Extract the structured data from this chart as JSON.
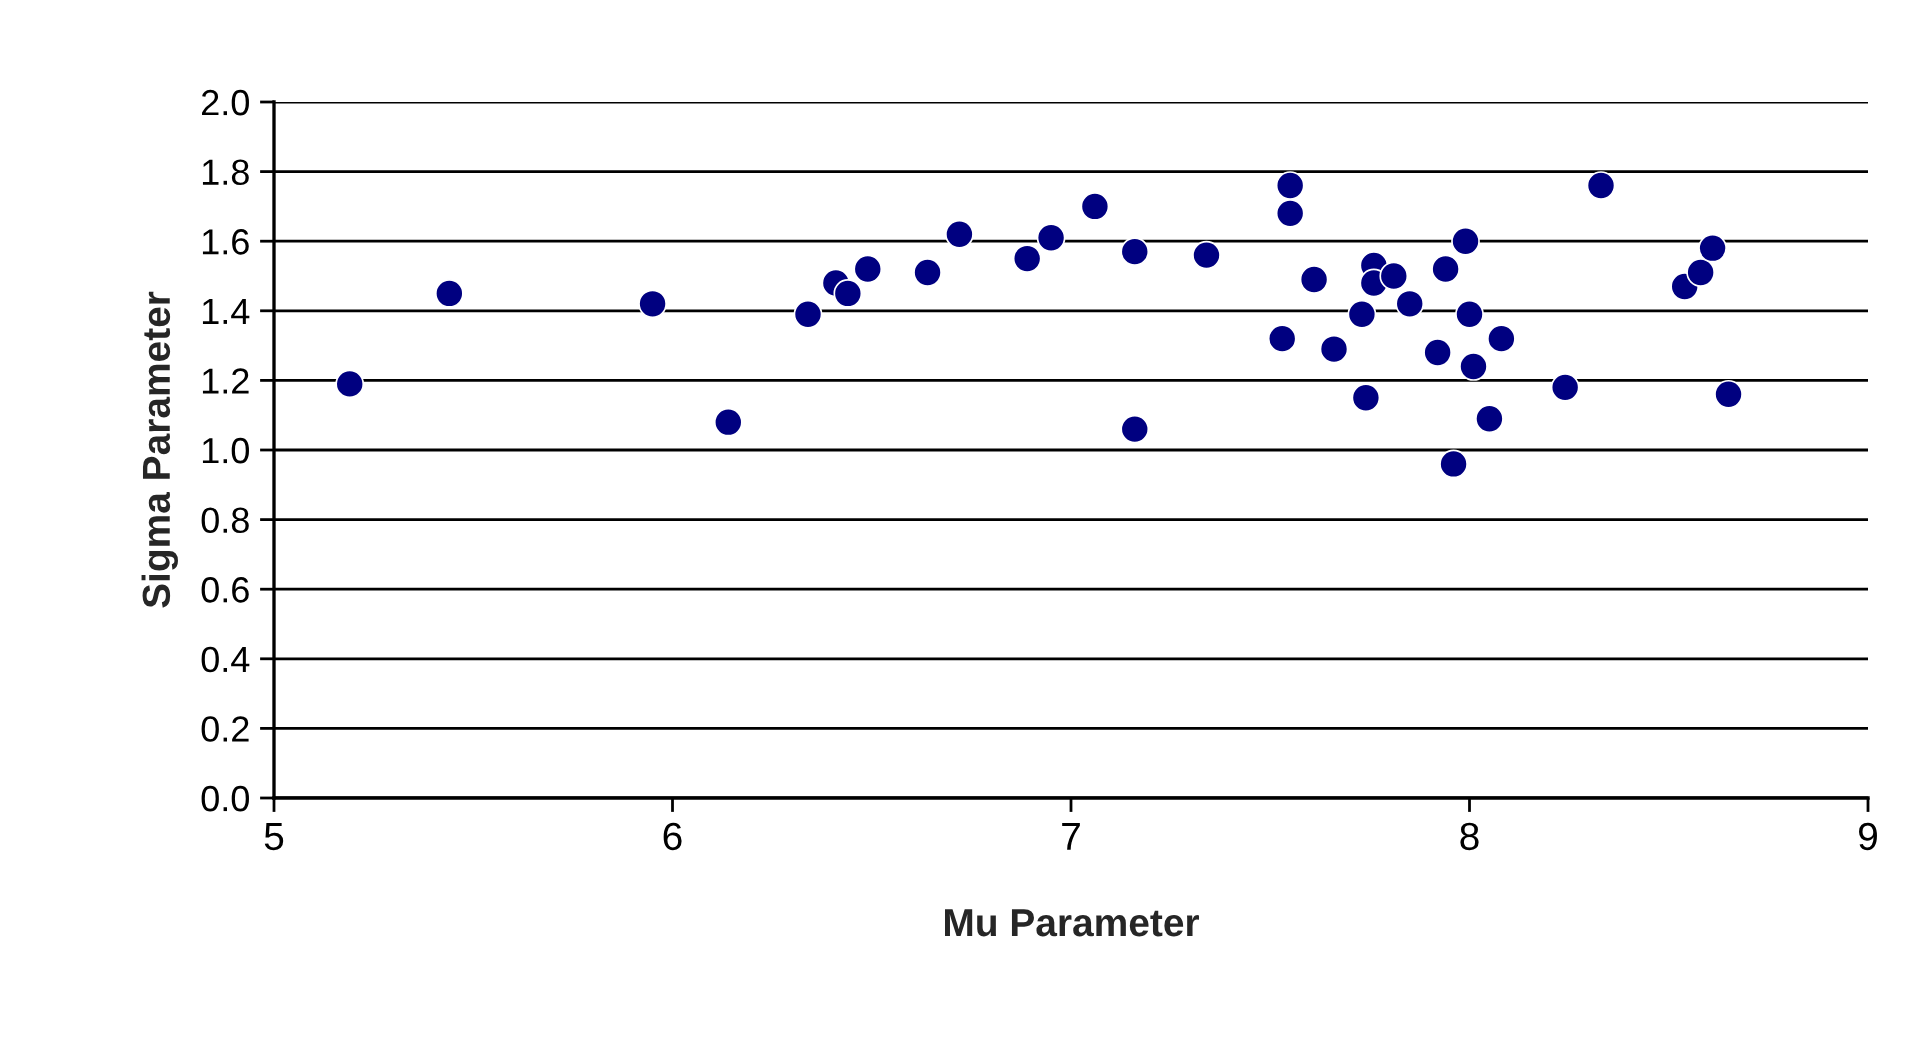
{
  "chart_data": {
    "type": "scatter",
    "xlabel": "Mu Parameter",
    "ylabel": "Sigma Parameter",
    "xlim": [
      5,
      9
    ],
    "xticks": [
      5,
      6,
      7,
      8,
      9
    ],
    "ylim": [
      0,
      2.0
    ],
    "yticks": [
      {
        "value": 0,
        "label": "0.0"
      },
      {
        "value": 0.2,
        "label": "0.2"
      },
      {
        "value": 0.4,
        "label": "0.4"
      },
      {
        "value": 0.6,
        "label": "0.6"
      },
      {
        "value": 0.8,
        "label": "0.8"
      },
      {
        "value": 1.0,
        "label": "1.0"
      },
      {
        "value": 1.2,
        "label": "1.2"
      },
      {
        "value": 1.4,
        "label": "1.4"
      },
      {
        "value": 1.6,
        "label": "1.6"
      },
      {
        "value": 1.8,
        "label": "1.8"
      },
      {
        "value": 2.0,
        "label": "2.0"
      }
    ],
    "grid": "y",
    "marker": "circle",
    "legend": false,
    "series": [
      {
        "color": "#000080",
        "x": [
          5.19,
          5.44,
          5.95,
          6.14,
          6.34,
          6.41,
          6.44,
          6.49,
          6.64,
          6.72,
          6.89,
          6.95,
          7.06,
          7.16,
          7.16,
          7.34,
          7.53,
          7.55,
          7.55,
          7.61,
          7.66,
          7.73,
          7.74,
          7.76,
          7.76,
          7.81,
          7.85,
          7.92,
          7.94,
          7.96,
          7.99,
          8.0,
          8.01,
          8.05,
          8.08,
          8.24,
          8.33,
          8.54,
          8.58,
          8.61,
          8.65
        ],
        "values": [
          1.19,
          1.45,
          1.42,
          1.08,
          1.39,
          1.48,
          1.45,
          1.52,
          1.51,
          1.62,
          1.55,
          1.61,
          1.7,
          1.57,
          1.06,
          1.56,
          1.32,
          1.76,
          1.68,
          1.49,
          1.29,
          1.39,
          1.15,
          1.53,
          1.48,
          1.5,
          1.42,
          1.28,
          1.52,
          0.96,
          1.6,
          1.39,
          1.24,
          1.09,
          1.32,
          1.18,
          1.76,
          1.47,
          1.51,
          1.58,
          1.16
        ]
      }
    ]
  }
}
